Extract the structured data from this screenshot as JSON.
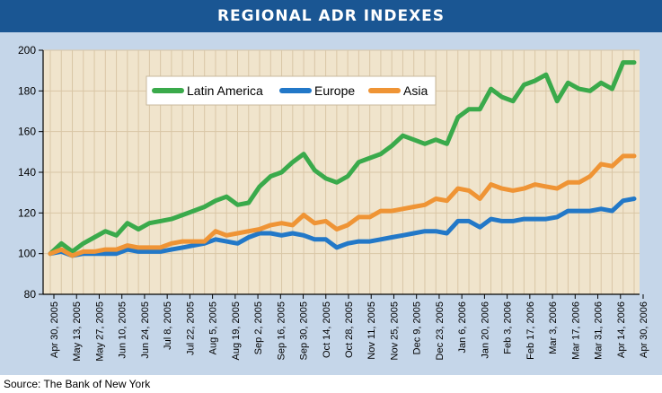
{
  "header": {
    "title": "REGIONAL ADR INDEXES"
  },
  "footer": {
    "source": "Source: The Bank of New York"
  },
  "colors": {
    "header_bg": "#1a5693",
    "panel_bg": "#c5d6e9",
    "plot_bg": "#f0e4cc",
    "grid": "#d9c6a6",
    "latin_america": "#3aaa4b",
    "europe": "#2278c8",
    "asia": "#ef9435"
  },
  "chart_data": {
    "type": "line",
    "title": "REGIONAL ADR INDEXES",
    "ylim": [
      80,
      200
    ],
    "yticks": [
      80,
      100,
      120,
      140,
      160,
      180,
      200
    ],
    "grid": true,
    "legend_position": "top-left",
    "xtick_labels": [
      "Apr 30, 2005",
      "May 13, 2005",
      "May 27, 2005",
      "Jun 10, 2005",
      "Jun 24, 2005",
      "Jul 8, 2005",
      "Jul 22, 2005",
      "Aug 5, 2005",
      "Aug 19, 2005",
      "Sep 2, 2005",
      "Sep 16, 2005",
      "Sep 30, 2005",
      "Oct 14, 2005",
      "Oct 28, 2005",
      "Nov 11, 2005",
      "Nov 25, 2005",
      "Dec 9, 2005",
      "Dec 23, 2005",
      "Jan 6, 2006",
      "Jan 20, 2006",
      "Feb 3, 2006",
      "Feb 17, 2006",
      "Mar 3, 2006",
      "Mar 17, 2006",
      "Mar 31, 2006",
      "Apr 14, 2006",
      "Apr 30, 2006"
    ],
    "series": [
      {
        "name": "Latin America",
        "color": "#3aaa4b",
        "values": [
          100,
          105,
          101,
          105,
          108,
          111,
          109,
          115,
          112,
          115,
          116,
          117,
          119,
          121,
          123,
          126,
          128,
          124,
          125,
          133,
          138,
          140,
          145,
          149,
          141,
          137,
          135,
          138,
          145,
          147,
          149,
          153,
          158,
          156,
          154,
          156,
          154,
          167,
          171,
          171,
          181,
          177,
          175,
          183,
          185,
          188,
          175,
          184,
          181,
          180,
          184,
          181,
          194,
          194
        ]
      },
      {
        "name": "Europe",
        "color": "#2278c8",
        "values": [
          100,
          101,
          99,
          100,
          100,
          100,
          100,
          102,
          101,
          101,
          101,
          102,
          103,
          104,
          105,
          107,
          106,
          105,
          108,
          110,
          110,
          109,
          110,
          109,
          107,
          107,
          103,
          105,
          106,
          106,
          107,
          108,
          109,
          110,
          111,
          111,
          110,
          116,
          116,
          113,
          117,
          116,
          116,
          117,
          117,
          117,
          118,
          121,
          121,
          121,
          122,
          121,
          126,
          127
        ]
      },
      {
        "name": "Asia",
        "color": "#ef9435",
        "values": [
          100,
          102,
          99,
          101,
          101,
          102,
          102,
          104,
          103,
          103,
          103,
          105,
          106,
          106,
          106,
          111,
          109,
          110,
          111,
          112,
          114,
          115,
          114,
          119,
          115,
          116,
          112,
          114,
          118,
          118,
          121,
          121,
          122,
          123,
          124,
          127,
          126,
          132,
          131,
          127,
          134,
          132,
          131,
          132,
          134,
          133,
          132,
          135,
          135,
          138,
          144,
          143,
          148,
          148
        ]
      }
    ]
  }
}
